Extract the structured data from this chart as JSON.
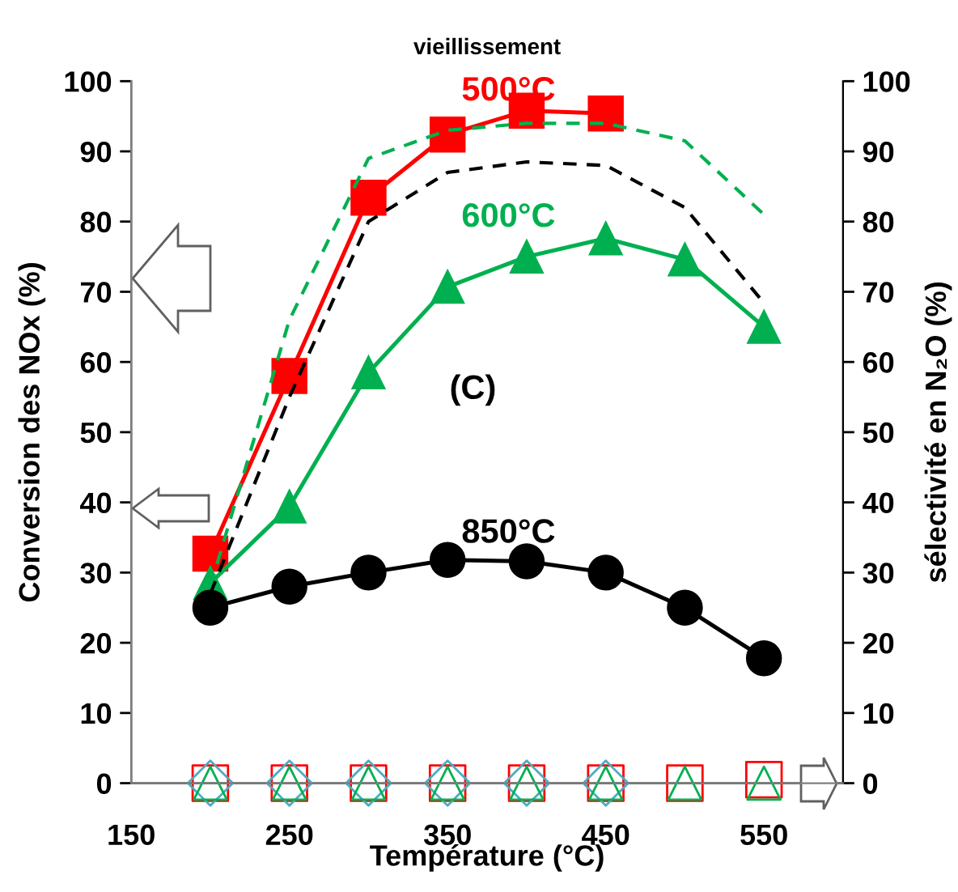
{
  "chart_data": {
    "type": "line",
    "title": "vieillissement",
    "xlabel": "Température (°C)",
    "ylabel": "Conversion des NOx (%)",
    "y2label": "sélectivité en N₂O (%)",
    "x": [
      200,
      250,
      300,
      350,
      400,
      450,
      500,
      550
    ],
    "xlim": [
      150,
      600
    ],
    "xticks": [
      150,
      250,
      350,
      450,
      550
    ],
    "ylim": [
      0,
      100
    ],
    "yticks": [
      0,
      10,
      20,
      30,
      40,
      50,
      60,
      70,
      80,
      90,
      100
    ],
    "y2lim": [
      0,
      100
    ],
    "y2ticks": [
      0,
      10,
      20,
      30,
      40,
      50,
      60,
      70,
      80,
      90,
      100
    ],
    "grid": false,
    "legend": false,
    "series": [
      {
        "color": "#00b050",
        "line_style": "dashed",
        "marker": "none",
        "values": [
          28,
          66,
          89,
          93,
          94,
          94,
          91.5,
          81
        ]
      },
      {
        "color": "#000000",
        "line_style": "dashed",
        "marker": "none",
        "values": [
          27,
          55,
          80,
          87,
          88.5,
          88,
          82,
          68.4
        ]
      },
      {
        "color": "#ff0000",
        "line_style": "solid",
        "marker": "square",
        "values": [
          32.7,
          58,
          83.4,
          92.4,
          95.8,
          95.4,
          null,
          null
        ]
      },
      {
        "color": "#00b050",
        "line_style": "solid",
        "marker": "triangle",
        "values": [
          28.5,
          39.4,
          58.5,
          70.7,
          75,
          77.6,
          74.6,
          65
        ]
      },
      {
        "color": "#000000",
        "line_style": "solid",
        "marker": "circle",
        "values": [
          25,
          28,
          30,
          31.8,
          31.6,
          30,
          25,
          17.8
        ]
      },
      {
        "type": "scatter",
        "axis": "y2",
        "color": "#ff0000",
        "marker": "square",
        "values": [
          0,
          0,
          0,
          0,
          0,
          0,
          0,
          0.5
        ]
      },
      {
        "type": "scatter",
        "axis": "y2",
        "color": "#4bacc6",
        "marker": "diamond",
        "values": [
          0,
          0,
          0,
          0,
          0,
          0,
          null,
          null
        ]
      },
      {
        "type": "scatter",
        "axis": "y2",
        "color": "#00b050",
        "marker": "triangle",
        "values": [
          0,
          0,
          0,
          0,
          0,
          0,
          0,
          0
        ]
      }
    ],
    "annotations": [
      "500°C",
      "600°C",
      "850°C",
      "(C)"
    ]
  }
}
